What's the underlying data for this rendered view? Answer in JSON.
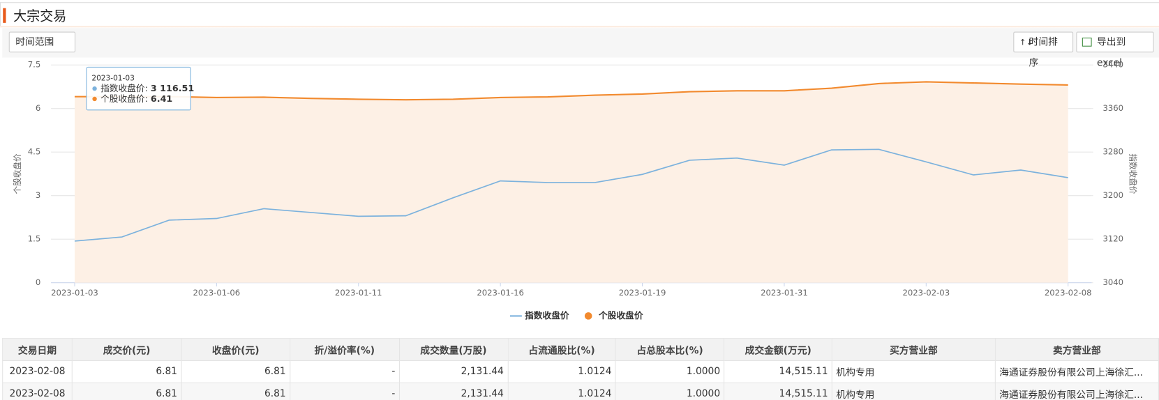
{
  "header": {
    "title": "大宗交易"
  },
  "toolbar": {
    "range_button": "时间范围",
    "sort_button": "时间排序",
    "export_button": "导出到excel"
  },
  "chart_data": {
    "type": "line",
    "categories": [
      "2023-01-03",
      null,
      null,
      "2023-01-06",
      null,
      null,
      "2023-01-11",
      null,
      null,
      "2023-01-16",
      null,
      null,
      "2023-01-19",
      null,
      null,
      "2023-01-31",
      null,
      null,
      "2023-02-03",
      null,
      null,
      "2023-02-08"
    ],
    "ylabel": "个股收盘价",
    "y2label": "指数收盘价",
    "ylim": [
      0,
      7.5
    ],
    "yticks": [
      0,
      1.5,
      3,
      4.5,
      6,
      7.5
    ],
    "y2lim": [
      3040,
      3440
    ],
    "y2ticks": [
      3040,
      3120,
      3200,
      3280,
      3360,
      3440
    ],
    "grid": true,
    "series": [
      {
        "name": "指数收盘价",
        "color": "#7cb2dd",
        "axis": "y2",
        "values": [
          3116.51,
          3124,
          3155,
          3158,
          3176,
          3169,
          3162,
          3163,
          3196,
          3227,
          3224,
          3224,
          3239,
          3265,
          3269,
          3256,
          3284,
          3285,
          3262,
          3238,
          3247,
          3233
        ]
      },
      {
        "name": "个股收盘价",
        "color": "#f28a2e",
        "fill": "#fdf0e5",
        "values": [
          6.41,
          6.41,
          6.41,
          6.38,
          6.39,
          6.35,
          6.32,
          6.3,
          6.32,
          6.38,
          6.4,
          6.46,
          6.5,
          6.58,
          6.61,
          6.61,
          6.7,
          6.86,
          6.92,
          6.88,
          6.84,
          6.81
        ]
      }
    ],
    "tooltip": {
      "values": [
        "3 116.51",
        "6.41"
      ]
    }
  },
  "table": {
    "columns": [
      "交易日期",
      "成交价(元)",
      "收盘价(元)",
      "折/溢价率(%)",
      "成交数量(万股)",
      "占流通股比(%)",
      "占总股本比(%)",
      "成交金额(万元)",
      "买方营业部",
      "卖方营业部"
    ],
    "rows": [
      [
        "2023-02-08",
        "6.81",
        "6.81",
        "-",
        "2,131.44",
        "1.0124",
        "1.0000",
        "14,515.11",
        "机构专用",
        "海通证券股份有限公司上海徐汇..."
      ],
      [
        "2023-02-08",
        "6.81",
        "6.81",
        "-",
        "2,131.44",
        "1.0124",
        "1.0000",
        "14,515.11",
        "机构专用",
        "海通证券股份有限公司上海徐汇..."
      ]
    ]
  }
}
